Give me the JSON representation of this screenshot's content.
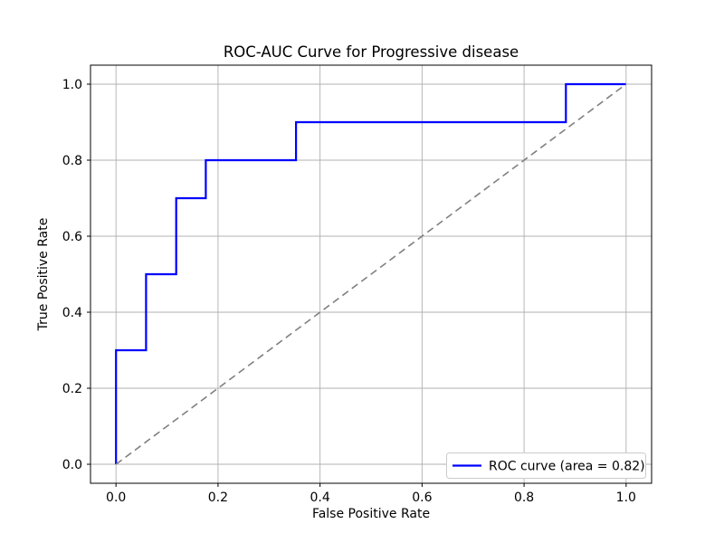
{
  "chart_data": {
    "type": "line",
    "title": "ROC-AUC Curve for Progressive disease",
    "xlabel": "False Positive Rate",
    "ylabel": "True Positive Rate",
    "xlim": [
      -0.05,
      1.05
    ],
    "ylim": [
      -0.05,
      1.05
    ],
    "xticks": [
      0.0,
      0.2,
      0.4,
      0.6,
      0.8,
      1.0
    ],
    "yticks": [
      0.0,
      0.2,
      0.4,
      0.6,
      0.8,
      1.0
    ],
    "grid": true,
    "auc": 0.82,
    "legend": {
      "label": "ROC curve (area = 0.82)",
      "position": "lower right",
      "line_color": "#0000ff"
    },
    "series": [
      {
        "name": "roc-curve",
        "label": "ROC curve (area = 0.82)",
        "color": "#0000ff",
        "linewidth": 2.2,
        "dash": "",
        "points": [
          [
            0.0,
            0.0
          ],
          [
            0.0,
            0.3
          ],
          [
            0.059,
            0.3
          ],
          [
            0.059,
            0.5
          ],
          [
            0.118,
            0.5
          ],
          [
            0.118,
            0.7
          ],
          [
            0.176,
            0.7
          ],
          [
            0.176,
            0.8
          ],
          [
            0.353,
            0.8
          ],
          [
            0.353,
            0.9
          ],
          [
            0.882,
            0.9
          ],
          [
            0.882,
            1.0
          ],
          [
            1.0,
            1.0
          ]
        ]
      },
      {
        "name": "chance-diagonal",
        "label": "",
        "color": "#808080",
        "linewidth": 1.6,
        "dash": "8,5",
        "points": [
          [
            0.0,
            0.0
          ],
          [
            1.0,
            1.0
          ]
        ]
      }
    ],
    "colors": {
      "background": "#ffffff",
      "grid": "#b0b0b0",
      "spine": "#000000",
      "text": "#000000",
      "legend_border": "#cccccc",
      "legend_fill": "#ffffff"
    }
  }
}
